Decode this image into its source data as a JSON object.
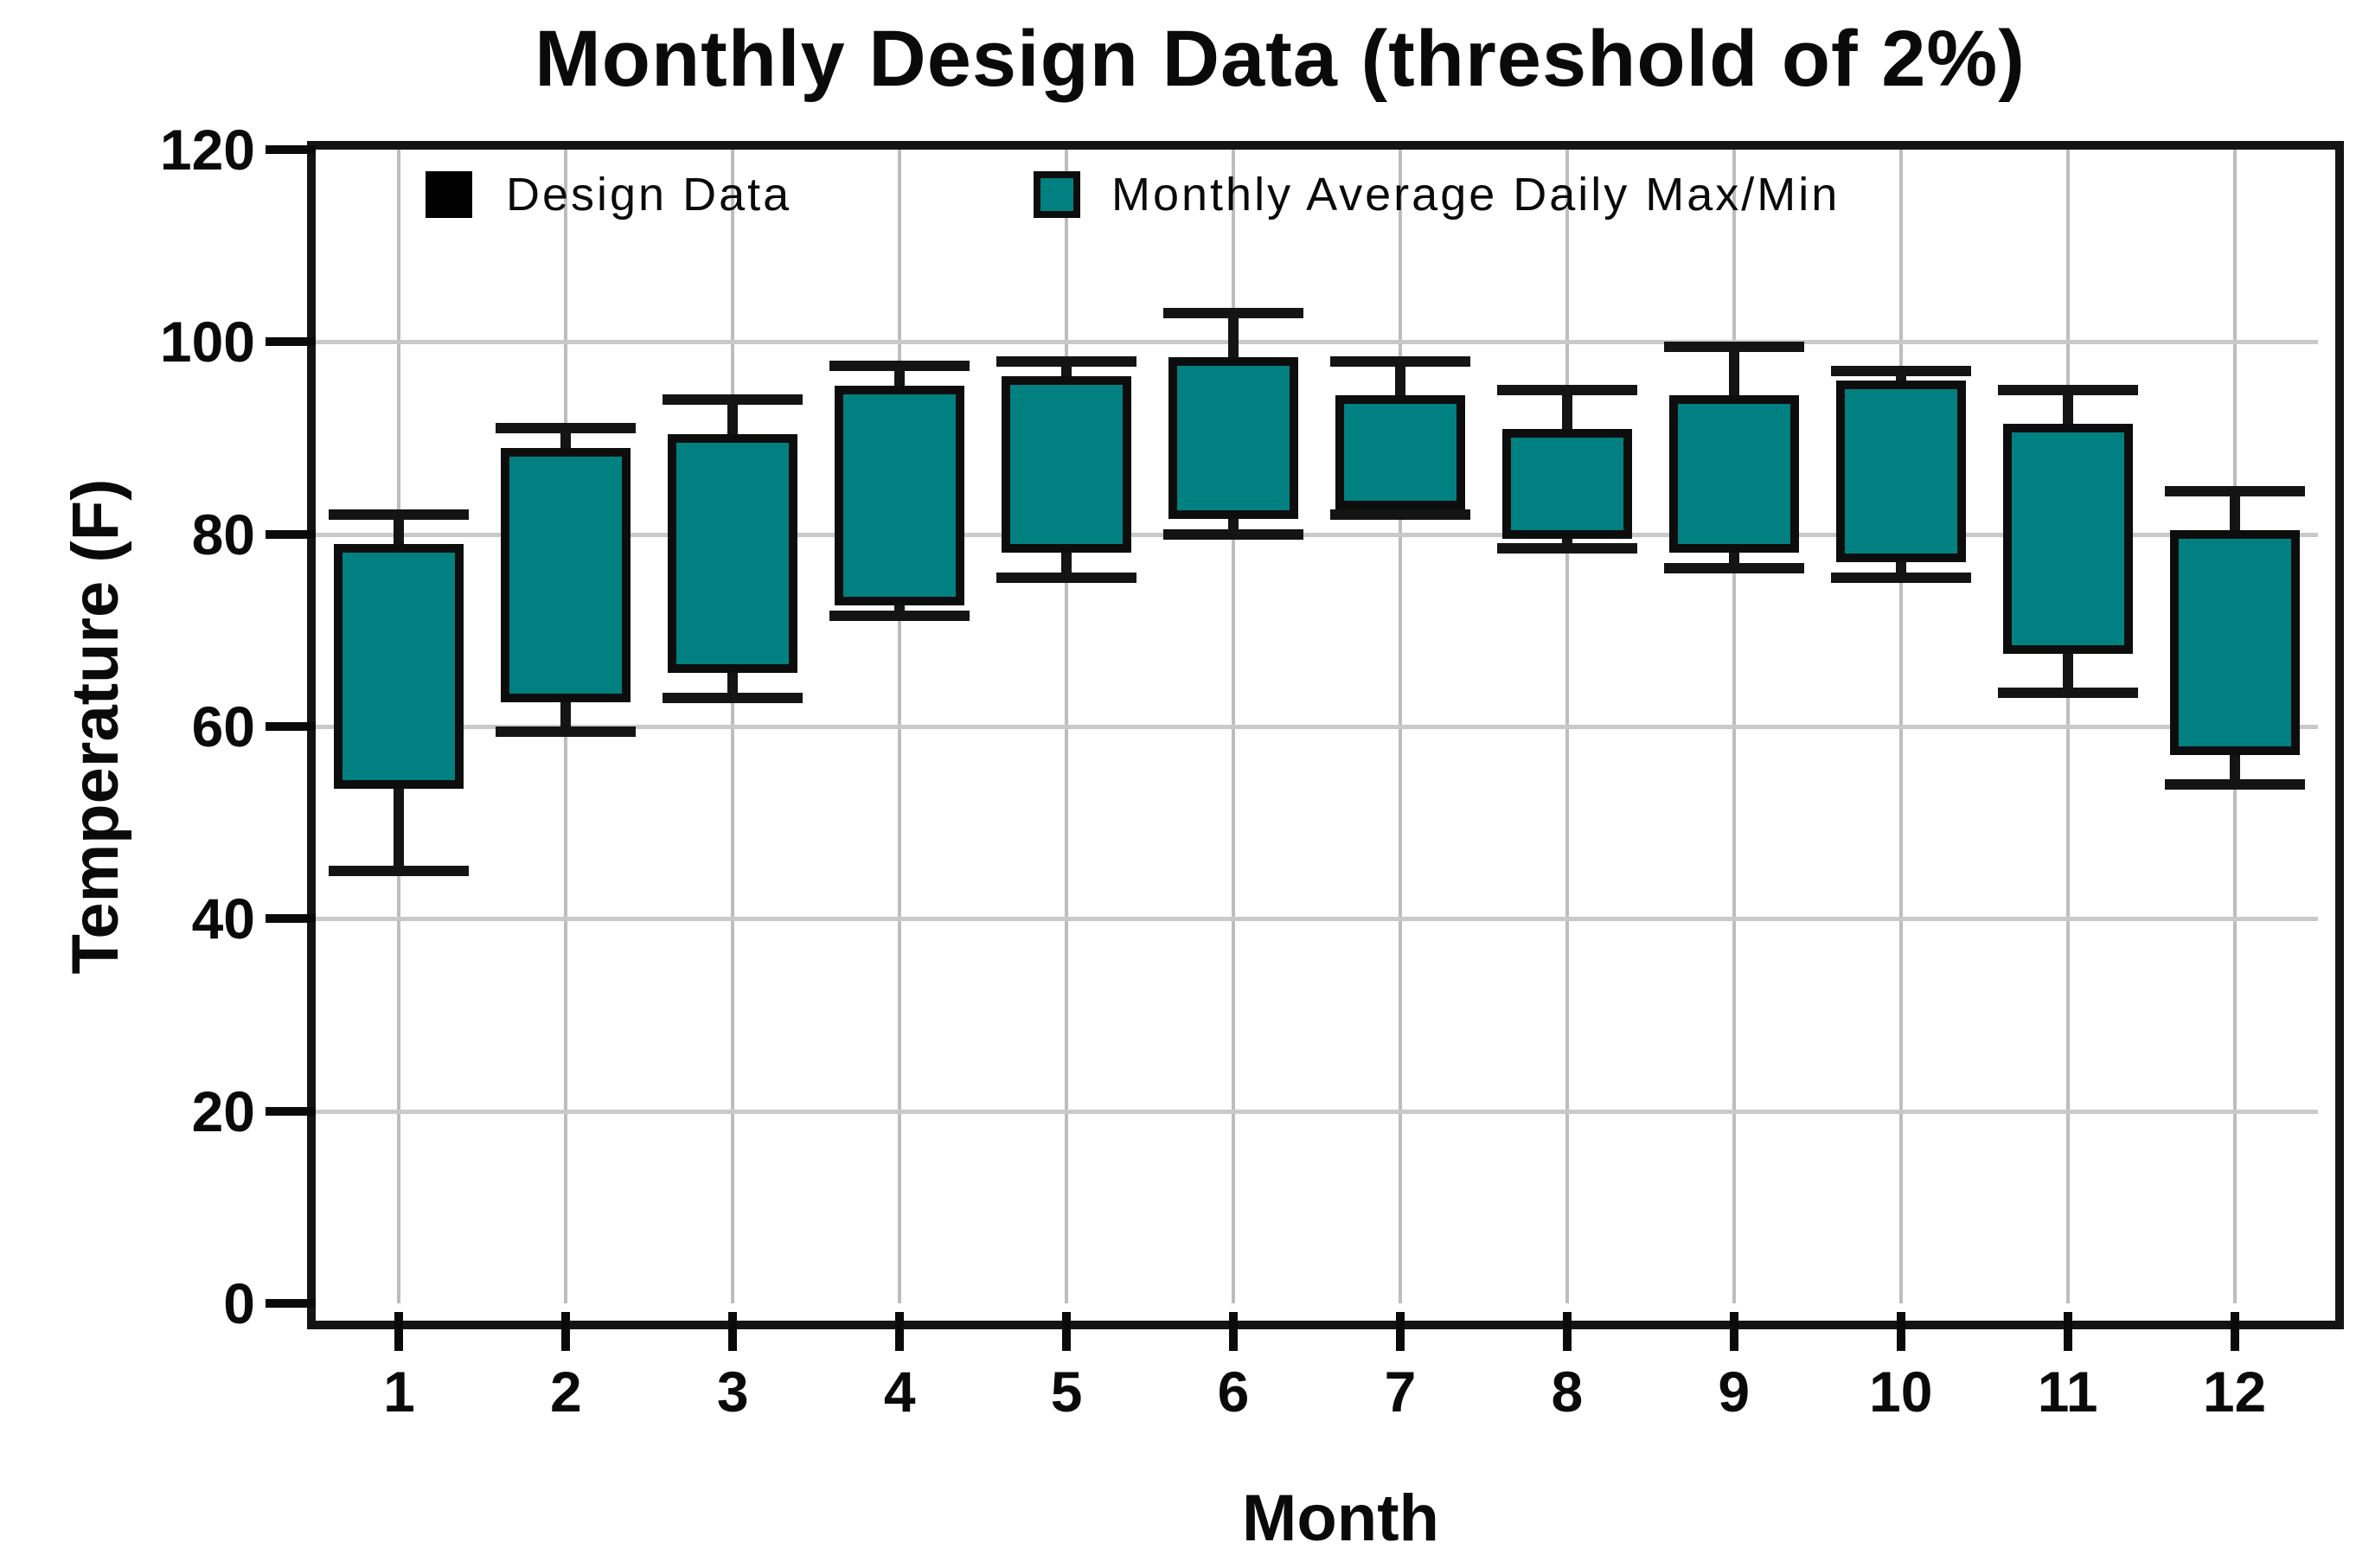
{
  "title": "Monthly Design Data (threshold of 2%)",
  "y_axis": {
    "label": "Temperature (F)",
    "tick_labels": [
      "0",
      "20",
      "40",
      "60",
      "80",
      "100",
      "120"
    ]
  },
  "x_axis": {
    "label": "Month",
    "tick_labels": [
      "1",
      "2",
      "3",
      "4",
      "5",
      "6",
      "7",
      "8",
      "9",
      "10",
      "11",
      "12"
    ]
  },
  "legend": {
    "items": [
      {
        "label": "Design Data",
        "swatch_color": "#000000"
      },
      {
        "label": "Monthly Average Daily Max/Min",
        "swatch_color": "#008080"
      }
    ]
  },
  "colors": {
    "box_fill": "#008080",
    "box_border": "#0d0d0d",
    "whisker": "#141414",
    "grid_vertical": "#bdbdbd",
    "grid_horizontal": "#c9c9c9",
    "frame": "#141414",
    "text": "#0a0a0a",
    "background": "#ffffff"
  },
  "chart_data": {
    "type": "box",
    "title": "Monthly Design Data (threshold of 2%)",
    "xlabel": "Month",
    "ylabel": "Temperature (F)",
    "ylim": [
      0,
      120
    ],
    "y_ticks": [
      0,
      20,
      40,
      60,
      80,
      100,
      120
    ],
    "grid": true,
    "legend_position": "top-inside",
    "categories": [
      1,
      2,
      3,
      4,
      5,
      6,
      7,
      8,
      9,
      10,
      11,
      12
    ],
    "series": [
      {
        "name": "Design Data high",
        "role": "whisker_top",
        "values": [
          82,
          91,
          94,
          97.5,
          98,
          103,
          98,
          95,
          99.5,
          97,
          95,
          84.5
        ]
      },
      {
        "name": "Monthly Average Daily Max",
        "role": "box_top",
        "values": [
          78.5,
          88.5,
          90,
          95,
          96,
          98,
          94,
          90.5,
          94,
          95.5,
          91,
          80
        ]
      },
      {
        "name": "Monthly Average Daily Min",
        "role": "box_bottom",
        "values": [
          54,
          63,
          66,
          73,
          78.5,
          82,
          83,
          80,
          78.5,
          77.5,
          68,
          57.5
        ]
      },
      {
        "name": "Design Data low",
        "role": "whisker_bottom",
        "values": [
          45,
          59.5,
          63,
          71.5,
          75.5,
          80,
          82,
          78.5,
          76.5,
          75.5,
          63.5,
          54
        ]
      }
    ]
  }
}
